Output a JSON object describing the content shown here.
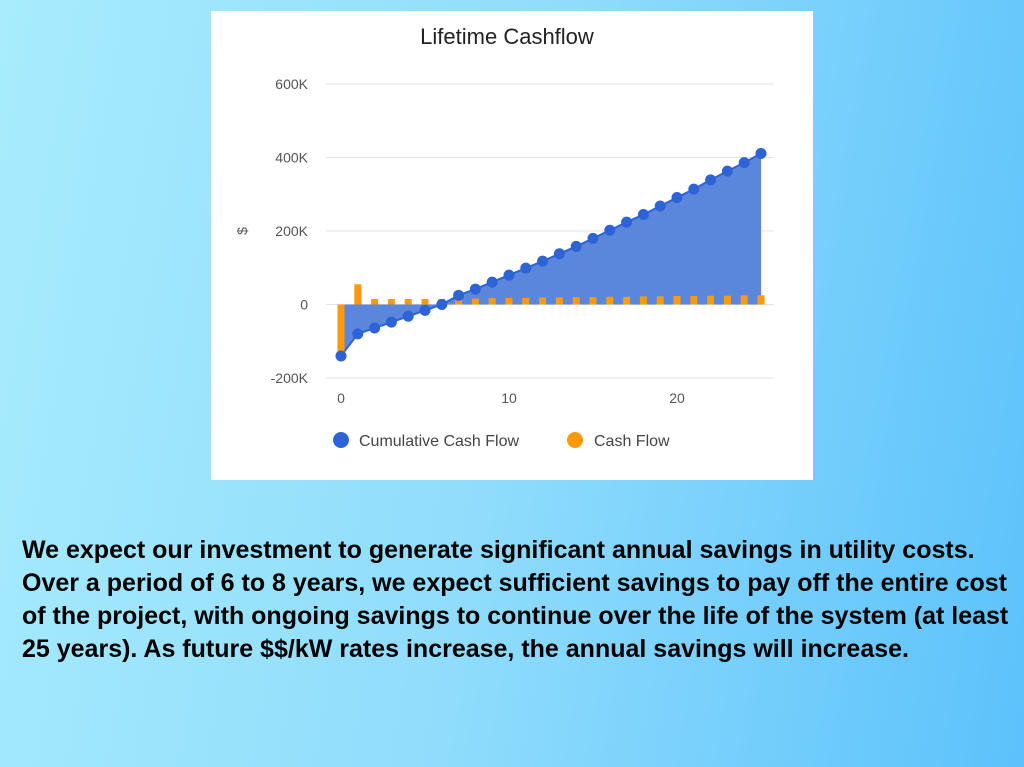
{
  "colors": {
    "cumulative": "#2d63d6",
    "cumulative_fill": "#5a86db",
    "cashflow": "#fc9a0c",
    "grid": "#e3e3e3",
    "axis_text": "#555555",
    "title_text": "#222222",
    "legend_text": "#444444"
  },
  "chart_data": {
    "type": "area",
    "title": "Lifetime Cashflow",
    "xlabel": "",
    "ylabel": "$",
    "xlim": [
      0,
      25
    ],
    "ylim": [
      -200000,
      600000
    ],
    "x_ticks": [
      0,
      10,
      20
    ],
    "y_ticks": [
      600000,
      400000,
      200000,
      0,
      -200000
    ],
    "y_tick_labels": [
      "600K",
      "400K",
      "200K",
      "0",
      "-200K"
    ],
    "x_tick_labels": [
      "0",
      "10",
      "20"
    ],
    "grid": true,
    "legend_position": "bottom",
    "x": [
      0,
      1,
      2,
      3,
      4,
      5,
      6,
      7,
      8,
      9,
      10,
      11,
      12,
      13,
      14,
      15,
      16,
      17,
      18,
      19,
      20,
      21,
      22,
      23,
      24,
      25
    ],
    "series": [
      {
        "name": "Cumulative Cash Flow",
        "style": "area",
        "values": [
          -140000,
          -80000,
          -64000,
          -48000,
          -32000,
          -16000,
          0,
          25000,
          42000,
          61000,
          80000,
          99000,
          118000,
          138000,
          158000,
          180000,
          202000,
          224000,
          245000,
          268000,
          291000,
          314000,
          339000,
          363000,
          386000,
          411000
        ]
      },
      {
        "name": "Cash Flow",
        "style": "bar",
        "values": [
          -140000,
          55000,
          15000,
          15000,
          15000,
          15000,
          15000,
          15000,
          16000,
          17000,
          18000,
          18000,
          19000,
          19000,
          20000,
          20000,
          21000,
          21000,
          22000,
          22000,
          23000,
          23000,
          24000,
          24000,
          25000,
          25000
        ]
      }
    ]
  },
  "caption": {
    "text": "We expect our investment to generate significant annual savings in utility costs.  Over a period of 6 to 8 years, we expect sufficient savings to pay off the entire cost of the project, with ongoing savings to continue over the life of the system (at least 25 years). As future $$/kW rates increase, the annual savings will increase."
  }
}
